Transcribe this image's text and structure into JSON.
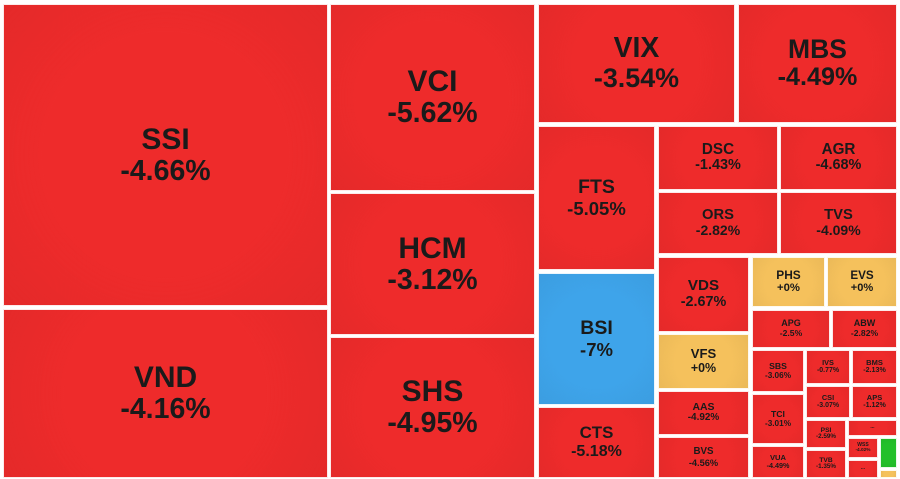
{
  "tiles": [
    {
      "label": "SSI",
      "change": "-4.66%",
      "color": "#ee2b2b"
    },
    {
      "label": "VND",
      "change": "-4.16%",
      "color": "#ee2b2b"
    },
    {
      "label": "VCI",
      "change": "-5.62%",
      "color": "#ee2b2b"
    },
    {
      "label": "HCM",
      "change": "-3.12%",
      "color": "#ee2b2b"
    },
    {
      "label": "SHS",
      "change": "-4.95%",
      "color": "#ee2b2b"
    },
    {
      "label": "VIX",
      "change": "-3.54%",
      "color": "#ee2b2b"
    },
    {
      "label": "MBS",
      "change": "-4.49%",
      "color": "#ee2b2b"
    },
    {
      "label": "FTS",
      "change": "-5.05%",
      "color": "#ee2b2b"
    },
    {
      "label": "DSC",
      "change": "-1.43%",
      "color": "#ee2b2b"
    },
    {
      "label": "AGR",
      "change": "-4.68%",
      "color": "#ee2b2b"
    },
    {
      "label": "ORS",
      "change": "-2.82%",
      "color": "#ee2b2b"
    },
    {
      "label": "TVS",
      "change": "-4.09%",
      "color": "#ee2b2b"
    },
    {
      "label": "BSI",
      "change": "-7%",
      "color": "#3ea4ea"
    },
    {
      "label": "CTS",
      "change": "-5.18%",
      "color": "#ee2b2b"
    },
    {
      "label": "VDS",
      "change": "-2.67%",
      "color": "#ee2b2b"
    },
    {
      "label": "PHS",
      "change": "+0%",
      "color": "#f5c15c"
    },
    {
      "label": "EVS",
      "change": "+0%",
      "color": "#f5c15c"
    },
    {
      "label": "VFS",
      "change": "+0%",
      "color": "#f5c15c"
    },
    {
      "label": "APG",
      "change": "-2.5%",
      "color": "#ee2b2b"
    },
    {
      "label": "ABW",
      "change": "-2.82%",
      "color": "#ee2b2b"
    },
    {
      "label": "AAS",
      "change": "-4.92%",
      "color": "#ee2b2b"
    },
    {
      "label": "BVS",
      "change": "-4.56%",
      "color": "#ee2b2b"
    },
    {
      "label": "SBS",
      "change": "-3.06%",
      "color": "#ee2b2b"
    },
    {
      "label": "IVS",
      "change": "-0.77%",
      "color": "#ee2b2b"
    },
    {
      "label": "BMS",
      "change": "-2.13%",
      "color": "#ee2b2b"
    },
    {
      "label": "CSI",
      "change": "-3.07%",
      "color": "#ee2b2b"
    },
    {
      "label": "APS",
      "change": "-1.12%",
      "color": "#ee2b2b"
    },
    {
      "label": "TCI",
      "change": "-3.01%",
      "color": "#ee2b2b"
    },
    {
      "label": "PSI",
      "change": "-2.59%",
      "color": "#ee2b2b"
    },
    {
      "label": "VUA",
      "change": "-4.49%",
      "color": "#ee2b2b"
    },
    {
      "label": "TVB",
      "change": "-1.35%",
      "color": "#ee2b2b"
    },
    {
      "label": "...",
      "color": "#ee2b2b"
    },
    {
      "label": "WSS",
      "change": "-4.02%",
      "color": "#ee2b2b"
    },
    {
      "color": "#22c02a"
    },
    {
      "label": "...",
      "color": "#ee2b2b"
    },
    {
      "color": "#f5c15c"
    }
  ]
}
